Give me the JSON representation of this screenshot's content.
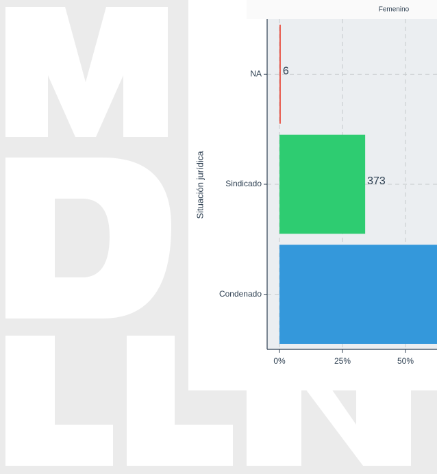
{
  "chart_data": {
    "type": "barh",
    "facet_title": "Femenino",
    "y_label": "Situación jurídica",
    "categories": [
      "NA",
      "Sindicado",
      "Condenado"
    ],
    "values": [
      0.5,
      34,
      65.5
    ],
    "count_labels": [
      6,
      373,
      null
    ],
    "colors": [
      "#e74c3c",
      "#2ecc71",
      "#3498db"
    ],
    "xlim": [
      -4.9,
      62.5
    ],
    "xticks": [
      {
        "value": 0,
        "label": "0%"
      },
      {
        "value": 25,
        "label": "25%"
      },
      {
        "value": 50,
        "label": "50%"
      }
    ],
    "grid": true
  }
}
